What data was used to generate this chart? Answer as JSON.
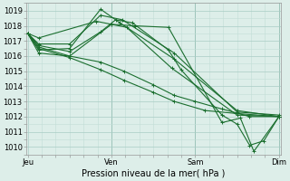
{
  "xlabel": "Pression niveau de la mer( hPa )",
  "x_ticks_labels": [
    "Jeu",
    "Ven",
    "Sam",
    "Dim"
  ],
  "x_ticks_pos": [
    0,
    1,
    2,
    3
  ],
  "ylim": [
    1009.5,
    1019.5
  ],
  "yticks": [
    1010,
    1011,
    1012,
    1013,
    1014,
    1015,
    1016,
    1017,
    1018,
    1019
  ],
  "bg_color": "#ddeee9",
  "grid_color_minor": "#c2ddd7",
  "grid_color_major": "#a8ccc5",
  "line_color": "#1a6e2e",
  "series": [
    [
      1017.5,
      1017.2,
      1018.3,
      1018.1,
      1017.9,
      1015.2,
      1012.1,
      1012.0
    ],
    [
      1017.5,
      1016.8,
      1016.8,
      1018.7,
      1018.4,
      1016.2,
      1012.3,
      1012.1
    ],
    [
      1017.5,
      1016.4,
      1016.5,
      1019.1,
      1018.2,
      1015.8,
      1012.4,
      1012.0
    ],
    [
      1017.5,
      1016.2,
      1016.0,
      1018.1,
      1018.0,
      1017.9,
      1011.6,
      1011.9,
      1009.7,
      1012.0
    ],
    [
      1017.5,
      1016.7,
      1016.3,
      1017.6,
      1018.4,
      1018.2,
      1016.4,
      1015.1,
      1012.1,
      1011.5,
      1010.1,
      1010.4,
      1012.0
    ],
    [
      1017.5,
      1016.6,
      1016.0,
      1015.6,
      1015.0,
      1014.1,
      1013.4,
      1013.0,
      1012.5,
      1012.0,
      1012.0
    ],
    [
      1017.5,
      1016.5,
      1015.9,
      1015.1,
      1014.4,
      1013.6,
      1013.0,
      1012.4,
      1012.2,
      1012.0
    ]
  ],
  "series_x": [
    [
      0,
      0.13,
      0.82,
      1.0,
      1.18,
      1.72,
      2.5,
      3.0
    ],
    [
      0,
      0.13,
      0.5,
      0.87,
      1.13,
      1.75,
      2.5,
      3.0
    ],
    [
      0,
      0.13,
      0.5,
      0.87,
      1.1,
      1.75,
      2.5,
      3.0
    ],
    [
      0,
      0.13,
      0.5,
      1.0,
      1.28,
      1.68,
      2.32,
      2.54,
      2.7,
      3.0
    ],
    [
      0,
      0.13,
      0.5,
      0.87,
      1.05,
      1.25,
      1.68,
      1.83,
      2.32,
      2.5,
      2.65,
      2.82,
      3.0
    ],
    [
      0,
      0.13,
      0.5,
      0.87,
      1.15,
      1.5,
      1.75,
      2.0,
      2.32,
      2.65,
      3.0
    ],
    [
      0,
      0.13,
      0.5,
      0.87,
      1.15,
      1.5,
      1.75,
      2.12,
      2.5,
      3.0
    ]
  ],
  "figsize": [
    3.2,
    2.0
  ],
  "dpi": 100
}
